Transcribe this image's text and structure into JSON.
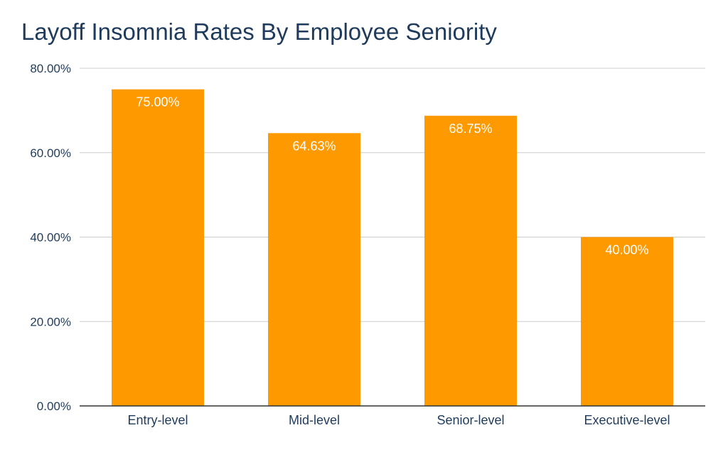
{
  "chart_data": {
    "type": "bar",
    "title": "Layoff Insomnia Rates By Employee Seniority",
    "categories": [
      "Entry-level",
      "Mid-level",
      "Senior-level",
      "Executive-level"
    ],
    "values": [
      75.0,
      64.63,
      68.75,
      40.0
    ],
    "data_labels": [
      "75.00%",
      "64.63%",
      "68.75%",
      "40.00%"
    ],
    "y_ticks": [
      0,
      20,
      40,
      60,
      80
    ],
    "y_tick_labels": [
      "0.00%",
      "20.00%",
      "40.00%",
      "60.00%",
      "80.00%"
    ],
    "ylim": [
      0,
      80
    ],
    "xlabel": "",
    "ylabel": "",
    "grid": true,
    "legend": "none",
    "colors": {
      "bar": "#ff9900",
      "text": "#1f3b5c",
      "grid": "#cccccc",
      "axis": "#333333"
    }
  }
}
